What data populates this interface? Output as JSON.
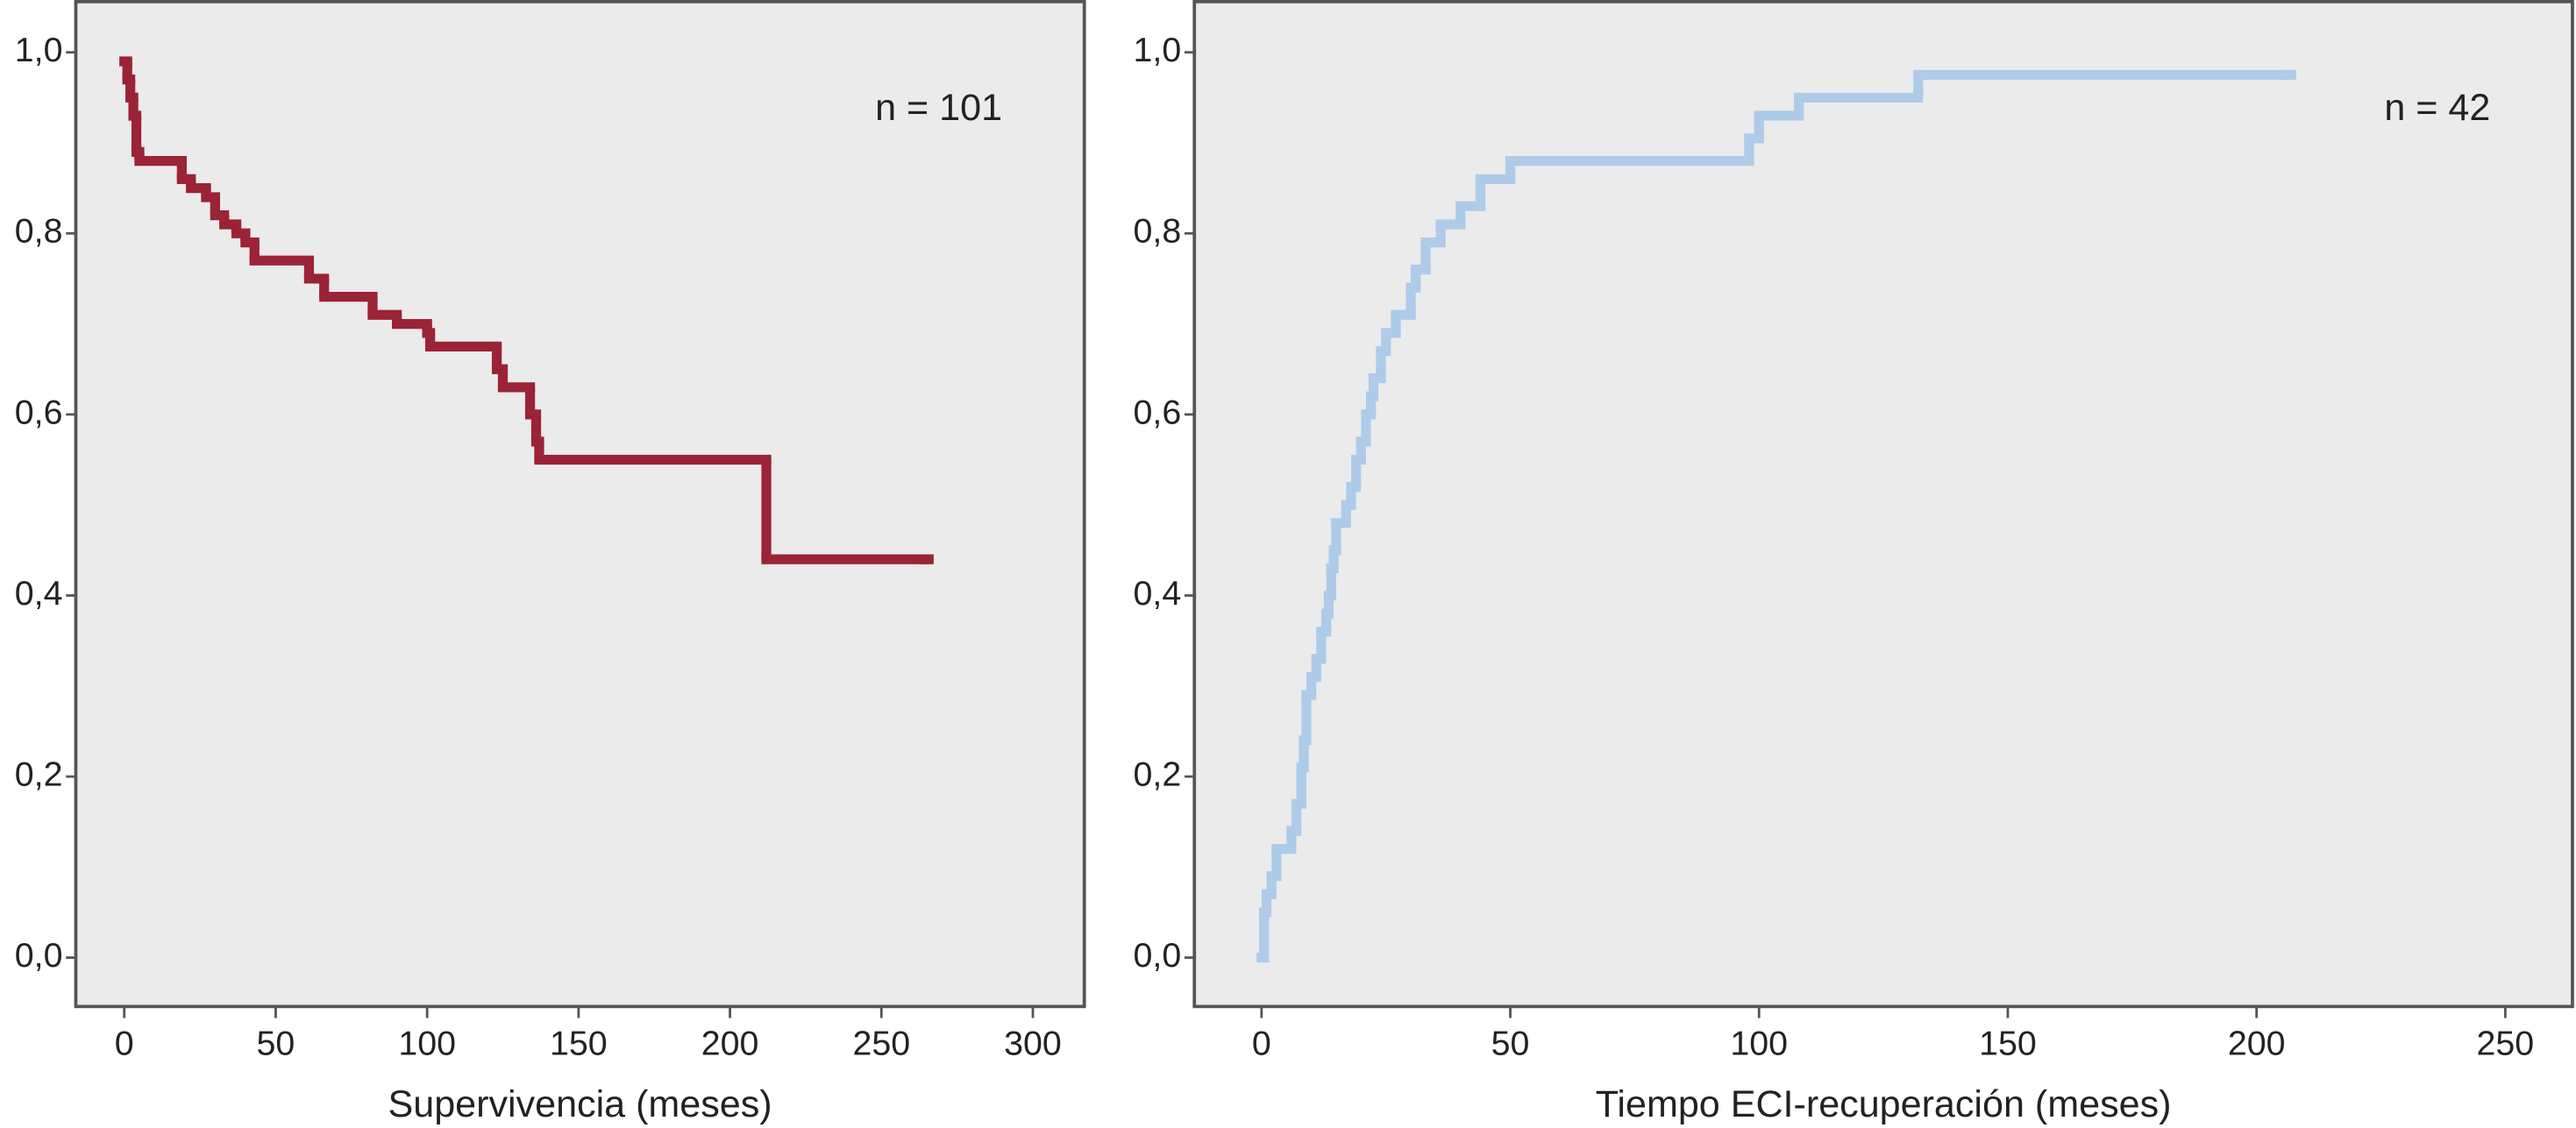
{
  "chart_data": [
    {
      "type": "step",
      "xlabel": "Supervivencia (meses)",
      "annotation": "n = 101",
      "color": "#9b2335",
      "x": [
        0,
        1,
        2,
        3,
        4,
        5,
        19,
        22,
        27,
        30,
        33,
        37,
        40,
        43,
        61,
        66,
        82,
        90,
        100,
        101,
        123,
        125,
        134,
        136,
        137,
        212,
        264
      ],
      "values": [
        0.99,
        0.97,
        0.95,
        0.93,
        0.89,
        0.88,
        0.86,
        0.85,
        0.84,
        0.82,
        0.81,
        0.8,
        0.79,
        0.77,
        0.75,
        0.73,
        0.71,
        0.7,
        0.69,
        0.675,
        0.65,
        0.63,
        0.6,
        0.57,
        0.55,
        0.44,
        0.44
      ],
      "xlim": [
        -16,
        317
      ],
      "ylim": [
        -0.054,
        1.056
      ],
      "xticks": [
        0,
        50,
        100,
        150,
        200,
        250,
        300
      ],
      "yticks": [
        {
          "value": 0,
          "label": "0,0"
        },
        {
          "value": 0.2,
          "label": "0,2"
        },
        {
          "value": 0.4,
          "label": "0,4"
        },
        {
          "value": 0.6,
          "label": "0,6"
        },
        {
          "value": 0.8,
          "label": "0,8"
        },
        {
          "value": 1,
          "label": "1,0"
        }
      ]
    },
    {
      "type": "step",
      "xlabel": "Tiempo ECI-recuperación (meses)",
      "annotation": "n = 42",
      "color": "#aecbea",
      "x": [
        0,
        0.5,
        1,
        2,
        3,
        6,
        7,
        8,
        8.5,
        9,
        10,
        11,
        12,
        13,
        13.5,
        14,
        14.5,
        15,
        17,
        18,
        19,
        20,
        21,
        22,
        22.5,
        24,
        25,
        27,
        30,
        31,
        33,
        36,
        40,
        44,
        50,
        98,
        100,
        108,
        132,
        206
      ],
      "values": [
        0,
        0.05,
        0.07,
        0.09,
        0.12,
        0.14,
        0.17,
        0.21,
        0.24,
        0.29,
        0.31,
        0.33,
        0.36,
        0.38,
        0.4,
        0.43,
        0.45,
        0.48,
        0.5,
        0.52,
        0.55,
        0.57,
        0.6,
        0.62,
        0.64,
        0.67,
        0.69,
        0.71,
        0.74,
        0.76,
        0.79,
        0.81,
        0.83,
        0.86,
        0.88,
        0.905,
        0.93,
        0.95,
        0.975,
        0.975
      ],
      "xlim": [
        -13.5,
        263.5
      ],
      "ylim": [
        -0.054,
        1.056
      ],
      "xticks": [
        0,
        50,
        100,
        150,
        200,
        250
      ],
      "yticks": [
        {
          "value": 0,
          "label": "0,0"
        },
        {
          "value": 0.2,
          "label": "0,2"
        },
        {
          "value": 0.4,
          "label": "0,4"
        },
        {
          "value": 0.6,
          "label": "0,6"
        },
        {
          "value": 0.8,
          "label": "0,8"
        },
        {
          "value": 1,
          "label": "1,0"
        }
      ]
    }
  ]
}
